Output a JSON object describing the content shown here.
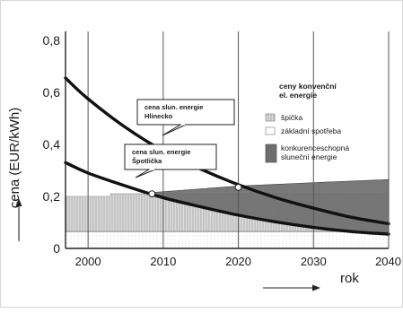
{
  "chart_data": {
    "type": "line",
    "xlabel": "rok",
    "ylabel": "cena (EUR/kWh)",
    "xlim": [
      1997,
      2040
    ],
    "ylim": [
      0,
      0.8
    ],
    "x_ticks": [
      "2000",
      "2010",
      "2020",
      "2030",
      "2040"
    ],
    "y_ticks": [
      "0",
      "0,2",
      "0,4",
      "0,6",
      "0,8"
    ],
    "grid": "vertical",
    "legend_title": "ceny konvenční el. energie",
    "legend_items": [
      "špička",
      "základní spotřeba",
      "konkurenceschopná sluneční energie"
    ],
    "series": [
      {
        "name": "cena sluneční energie Hlinecko",
        "x": [
          1997,
          2000,
          2005,
          2010,
          2015,
          2020,
          2025,
          2030,
          2035,
          2040
        ],
        "y": [
          0.655,
          0.575,
          0.465,
          0.375,
          0.305,
          0.245,
          0.195,
          0.155,
          0.12,
          0.095
        ]
      },
      {
        "name": "cena sluneční energie Špotlička",
        "x": [
          1997,
          2000,
          2005,
          2010,
          2015,
          2020,
          2025,
          2030,
          2035,
          2040
        ],
        "y": [
          0.33,
          0.29,
          0.24,
          0.195,
          0.16,
          0.128,
          0.102,
          0.081,
          0.065,
          0.055
        ]
      }
    ],
    "areas": [
      {
        "name": "špička",
        "x": [
          1997,
          2003,
          2003,
          2040
        ],
        "y": [
          0.2,
          0.2,
          0.21,
          0.21
        ]
      },
      {
        "name": "základní spotřeba",
        "x": [
          1997,
          2040
        ],
        "y": [
          0.065,
          0.065
        ]
      },
      {
        "name": "konkurenceschopná sluneční energie",
        "x": [
          2008.5,
          2020,
          2030,
          2040
        ],
        "y": [
          0.215,
          0.24,
          0.253,
          0.265
        ]
      }
    ],
    "annotations": [
      {
        "lines": [
          "cena slun. energie",
          "Hlinecko"
        ]
      },
      {
        "lines": [
          "cena slun. energie",
          "Špotlička"
        ]
      }
    ],
    "markers": [
      {
        "x": 2008.5,
        "y": 0.21
      },
      {
        "x": 2020,
        "y": 0.235
      }
    ]
  }
}
